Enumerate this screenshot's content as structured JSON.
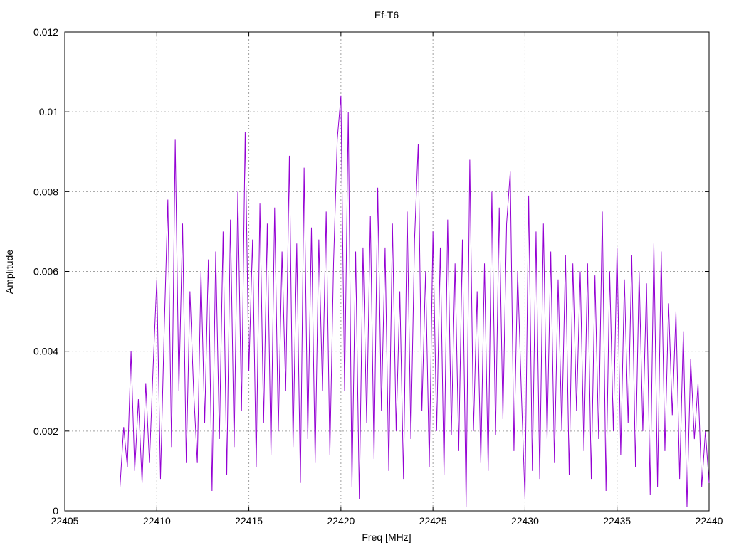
{
  "chart_data": {
    "type": "line",
    "title": "Ef-T6",
    "xlabel": "Freq [MHz]",
    "ylabel": "Amplitude",
    "xlim": [
      22405,
      22440
    ],
    "ylim": [
      0,
      0.012
    ],
    "grid": true,
    "xticks": [
      "22405",
      "22410",
      "22415",
      "22420",
      "22425",
      "22430",
      "22435",
      "22440"
    ],
    "xtick_values": [
      22405,
      22410,
      22415,
      22420,
      22425,
      22430,
      22435,
      22440
    ],
    "yticks": [
      "0",
      "0.002",
      "0.004",
      "0.006",
      "0.008",
      "0.01",
      "0.012"
    ],
    "ytick_values": [
      0,
      0.002,
      0.004,
      0.006,
      0.008,
      0.01,
      0.012
    ],
    "series": [
      {
        "name": "Ef-T6",
        "color": "#9400d3",
        "x_start": 22408.0,
        "x_step": 0.2,
        "values": [
          0.0006,
          0.0021,
          0.0011,
          0.004,
          0.001,
          0.0028,
          0.0007,
          0.0032,
          0.0012,
          0.0036,
          0.0058,
          0.0008,
          0.0045,
          0.0078,
          0.0016,
          0.0093,
          0.003,
          0.0072,
          0.0012,
          0.0055,
          0.003,
          0.0012,
          0.006,
          0.0022,
          0.0063,
          0.0005,
          0.0065,
          0.0018,
          0.007,
          0.0009,
          0.0073,
          0.0016,
          0.008,
          0.0025,
          0.0095,
          0.0035,
          0.0068,
          0.0011,
          0.0077,
          0.0022,
          0.0072,
          0.0014,
          0.0076,
          0.002,
          0.0065,
          0.003,
          0.0089,
          0.0016,
          0.0067,
          0.0007,
          0.0086,
          0.0018,
          0.0071,
          0.0012,
          0.0068,
          0.003,
          0.0075,
          0.0014,
          0.0062,
          0.0093,
          0.0104,
          0.003,
          0.01,
          0.0006,
          0.0065,
          0.0003,
          0.0066,
          0.0022,
          0.0074,
          0.0013,
          0.0081,
          0.0025,
          0.0066,
          0.001,
          0.0072,
          0.002,
          0.0055,
          0.0008,
          0.0075,
          0.0018,
          0.0068,
          0.0092,
          0.0025,
          0.006,
          0.0011,
          0.007,
          0.002,
          0.0066,
          0.0009,
          0.0073,
          0.0019,
          0.0062,
          0.0015,
          0.0068,
          0.0001,
          0.0088,
          0.002,
          0.0055,
          0.0012,
          0.0062,
          0.001,
          0.008,
          0.0019,
          0.0076,
          0.0023,
          0.0072,
          0.0085,
          0.0015,
          0.006,
          0.003,
          0.0003,
          0.0079,
          0.001,
          0.007,
          0.0008,
          0.0072,
          0.0018,
          0.0065,
          0.0012,
          0.0058,
          0.002,
          0.0064,
          0.0009,
          0.0062,
          0.0025,
          0.006,
          0.0015,
          0.0062,
          0.0008,
          0.0059,
          0.0018,
          0.0075,
          0.0005,
          0.006,
          0.002,
          0.0066,
          0.0014,
          0.0058,
          0.0022,
          0.0064,
          0.0011,
          0.006,
          0.002,
          0.0057,
          0.0004,
          0.0067,
          0.0006,
          0.0065,
          0.0015,
          0.0052,
          0.0024,
          0.005,
          0.0008,
          0.0045,
          0.0001,
          0.0038,
          0.0018,
          0.0032,
          0.0006,
          0.002,
          0.0007
        ]
      }
    ]
  }
}
